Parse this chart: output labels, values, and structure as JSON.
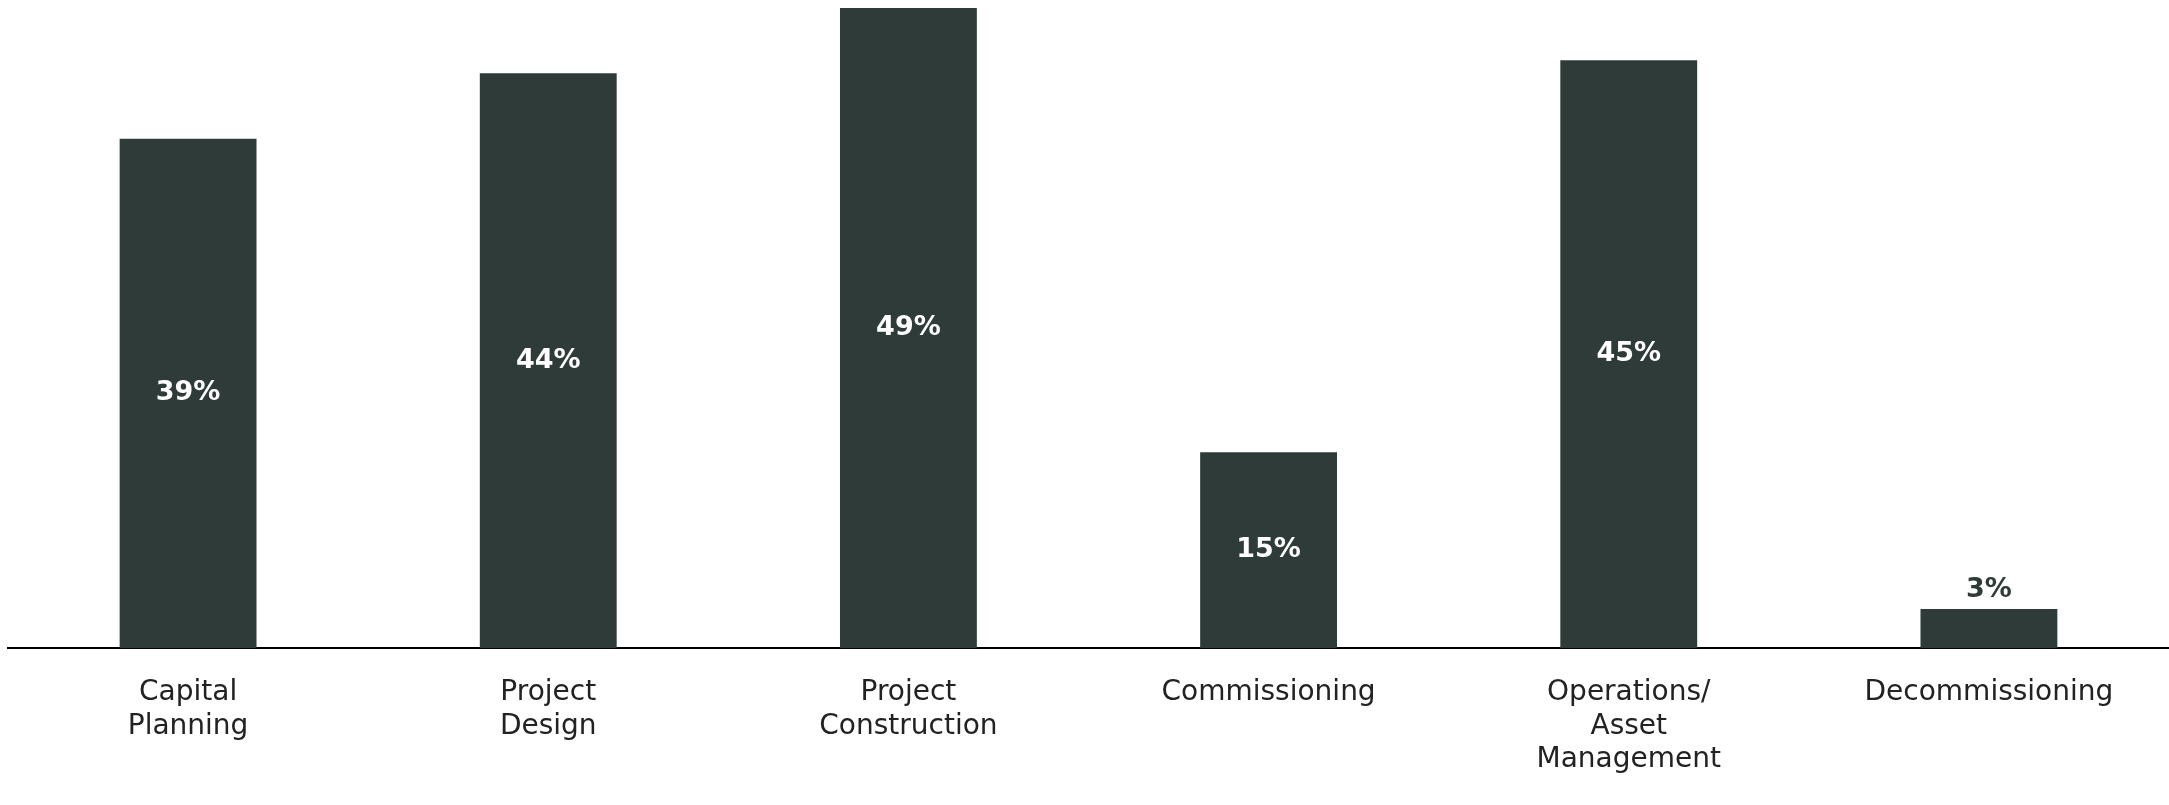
{
  "chart_data": {
    "type": "bar",
    "categories": [
      "Capital Planning",
      "Project Design",
      "Project Construction",
      "Commissioning",
      "Operations/ Asset Management",
      "Decommissioning"
    ],
    "values": [
      39,
      44,
      49,
      15,
      45,
      3
    ],
    "value_labels": [
      "39%",
      "44%",
      "49%",
      "15%",
      "45%",
      "3%"
    ],
    "color": "#2f3b38",
    "tick_labels": "x",
    "grid": false,
    "legend": false
  }
}
